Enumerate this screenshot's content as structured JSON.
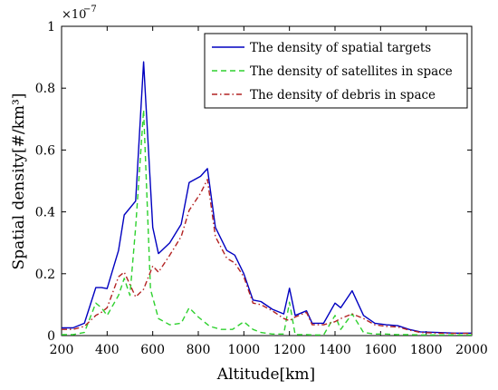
{
  "chart_data": {
    "type": "line",
    "xlabel": "Altitude[km]",
    "ylabel": "Spatial density[#/km³]",
    "xlim": [
      200,
      2000
    ],
    "ylim": [
      0,
      1
    ],
    "x_ticks": [
      "200",
      "400",
      "600",
      "800",
      "1000",
      "1200",
      "1400",
      "1600",
      "1800",
      "2000"
    ],
    "y_ticks": [
      "0",
      "0.2",
      "0.4",
      "0.6",
      "0.8",
      "1"
    ],
    "y_exponent_base": "×10",
    "y_exponent": "−7",
    "legend_position": "top-right",
    "grid": false,
    "series": [
      {
        "name": "The density of spatial targets",
        "color": "#0000c0",
        "style": "solid",
        "x": [
          200,
          250,
          300,
          350,
          375,
          400,
          450,
          475,
          525,
          560,
          600,
          625,
          675,
          725,
          760,
          810,
          840,
          875,
          925,
          960,
          1000,
          1040,
          1075,
          1125,
          1175,
          1200,
          1225,
          1275,
          1300,
          1350,
          1400,
          1425,
          1475,
          1525,
          1575,
          1625,
          1675,
          1725,
          1775,
          1850,
          1925,
          2000
        ],
        "y": [
          0.025,
          0.025,
          0.04,
          0.155,
          0.155,
          0.152,
          0.275,
          0.39,
          0.435,
          0.885,
          0.35,
          0.265,
          0.3,
          0.36,
          0.495,
          0.515,
          0.54,
          0.35,
          0.275,
          0.26,
          0.2,
          0.115,
          0.11,
          0.085,
          0.07,
          0.153,
          0.065,
          0.08,
          0.04,
          0.04,
          0.105,
          0.09,
          0.145,
          0.065,
          0.04,
          0.035,
          0.032,
          0.02,
          0.012,
          0.01,
          0.008,
          0.008
        ]
      },
      {
        "name": "The density of satellites in space",
        "color": "#2ed12e",
        "style": "dashed",
        "x": [
          200,
          250,
          300,
          350,
          375,
          400,
          450,
          475,
          500,
          525,
          560,
          590,
          625,
          675,
          725,
          760,
          800,
          850,
          900,
          950,
          1000,
          1040,
          1075,
          1125,
          1175,
          1200,
          1225,
          1275,
          1300,
          1350,
          1400,
          1425,
          1475,
          1525,
          1575,
          1625,
          1675,
          1725,
          1775,
          1850,
          1925,
          2000
        ],
        "y": [
          0.003,
          0.003,
          0.01,
          0.105,
          0.09,
          0.065,
          0.13,
          0.185,
          0.13,
          0.35,
          0.73,
          0.15,
          0.055,
          0.035,
          0.04,
          0.09,
          0.06,
          0.03,
          0.02,
          0.02,
          0.045,
          0.02,
          0.01,
          0.005,
          0.005,
          0.108,
          0.003,
          0.003,
          0.002,
          0.002,
          0.065,
          0.02,
          0.07,
          0.01,
          0.005,
          0.005,
          0.003,
          0.003,
          0.002,
          0.002,
          0.002,
          0.002
        ]
      },
      {
        "name": "The density of debris in space",
        "color": "#b22222",
        "style": "dashdot",
        "x": [
          200,
          250,
          300,
          350,
          375,
          400,
          450,
          475,
          525,
          560,
          600,
          625,
          675,
          725,
          760,
          810,
          840,
          875,
          925,
          960,
          1000,
          1040,
          1075,
          1125,
          1175,
          1200,
          1225,
          1275,
          1300,
          1350,
          1400,
          1425,
          1475,
          1525,
          1575,
          1625,
          1675,
          1725,
          1775,
          1850,
          1925,
          2000
        ],
        "y": [
          0.02,
          0.02,
          0.03,
          0.065,
          0.075,
          0.09,
          0.19,
          0.205,
          0.125,
          0.15,
          0.225,
          0.205,
          0.26,
          0.32,
          0.405,
          0.46,
          0.505,
          0.32,
          0.25,
          0.235,
          0.19,
          0.105,
          0.1,
          0.08,
          0.055,
          0.048,
          0.06,
          0.075,
          0.035,
          0.035,
          0.045,
          0.055,
          0.07,
          0.055,
          0.035,
          0.03,
          0.028,
          0.018,
          0.01,
          0.008,
          0.007,
          0.007
        ]
      }
    ]
  }
}
